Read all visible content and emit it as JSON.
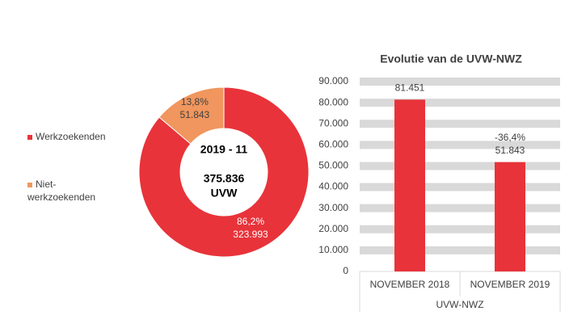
{
  "chart_data": [
    {
      "type": "pie",
      "categories": [
        "Werkzoekenden",
        "Niet-werkzoekenden"
      ],
      "values": [
        323993,
        51843
      ],
      "value_labels": [
        "323.993",
        "51.843"
      ],
      "percent_labels": [
        "86,2%",
        "13,8%"
      ],
      "colors": [
        "#e8333a",
        "#f0965e"
      ],
      "center_title": "2019 - 11",
      "total_label": "375.836",
      "total_unit": "UVW",
      "legend": "left"
    },
    {
      "type": "bar",
      "title": "Evolutie van de UVW-NWZ",
      "categories": [
        "NOVEMBER 2018",
        "NOVEMBER 2019"
      ],
      "x_group_label": "UVW-NWZ",
      "values": [
        81451,
        51843
      ],
      "value_labels": [
        "81.451",
        "51.843"
      ],
      "annotation": "-36,4%",
      "color": "#e8333a",
      "ylim": [
        0,
        90000
      ],
      "yticks": [
        0,
        {
          "value": 10000,
          "label": "10.000"
        },
        {
          "value": 20000,
          "label": "20.000"
        },
        {
          "value": 30000,
          "label": "30.000"
        },
        {
          "value": 40000,
          "label": "40.000"
        },
        {
          "value": 50000,
          "label": "50.000"
        },
        {
          "value": 60000,
          "label": "60.000"
        },
        {
          "value": 70000,
          "label": "70.000"
        },
        {
          "value": 80000,
          "label": "80.000"
        },
        {
          "value": 90000,
          "label": "90.000"
        }
      ],
      "grid": true
    }
  ]
}
